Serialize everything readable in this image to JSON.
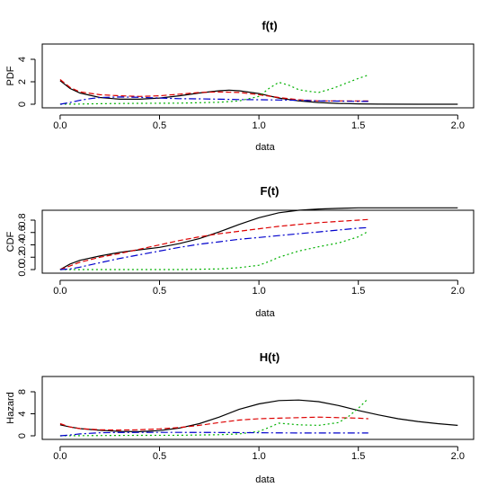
{
  "chart_data": [
    {
      "type": "line",
      "title": "f(t)",
      "xlabel": "data",
      "ylabel": "PDF",
      "xlim": [
        0,
        2
      ],
      "ylim": [
        0,
        5
      ],
      "xticks": [
        0.0,
        0.5,
        1.0,
        1.5,
        2.0
      ],
      "xtick_labels": [
        "0.0",
        "0.5",
        "1.0",
        "1.5",
        "2.0"
      ],
      "yticks": [
        0,
        2,
        4
      ],
      "ytick_labels": [
        "0",
        "2",
        "4"
      ],
      "series": [
        {
          "color": "#000000",
          "dash": "solid",
          "x": [
            0.0,
            0.05,
            0.1,
            0.2,
            0.3,
            0.4,
            0.5,
            0.6,
            0.7,
            0.8,
            0.85,
            0.9,
            1.0,
            1.1,
            1.2,
            1.3,
            1.4,
            1.5,
            1.6,
            1.8,
            2.0
          ],
          "y": [
            2.1,
            1.4,
            1.0,
            0.6,
            0.45,
            0.45,
            0.55,
            0.75,
            1.0,
            1.2,
            1.25,
            1.2,
            0.95,
            0.55,
            0.3,
            0.15,
            0.07,
            0.03,
            0.01,
            0.0,
            0.0
          ]
        },
        {
          "color": "#dd0000",
          "dash": "6,3",
          "x": [
            0.0,
            0.05,
            0.1,
            0.2,
            0.3,
            0.4,
            0.5,
            0.6,
            0.7,
            0.8,
            0.9,
            1.0,
            1.1,
            1.2,
            1.3,
            1.4,
            1.5,
            1.55
          ],
          "y": [
            2.2,
            1.5,
            1.1,
            0.85,
            0.75,
            0.7,
            0.75,
            0.9,
            1.05,
            1.1,
            1.05,
            0.85,
            0.6,
            0.4,
            0.3,
            0.3,
            0.3,
            0.3
          ]
        },
        {
          "color": "#00b000",
          "dash": "2,3",
          "x": [
            0.0,
            0.1,
            0.2,
            0.4,
            0.6,
            0.8,
            0.9,
            1.0,
            1.05,
            1.1,
            1.15,
            1.2,
            1.25,
            1.3,
            1.35,
            1.4,
            1.45,
            1.5,
            1.55
          ],
          "y": [
            0.0,
            0.02,
            0.05,
            0.08,
            0.1,
            0.18,
            0.3,
            0.7,
            1.4,
            1.95,
            1.7,
            1.3,
            1.15,
            1.05,
            1.3,
            1.6,
            1.95,
            2.3,
            2.6
          ]
        },
        {
          "color": "#0000cc",
          "dash": "8,3,2,3",
          "x": [
            0.0,
            0.05,
            0.1,
            0.15,
            0.2,
            0.3,
            0.4,
            0.5,
            0.6,
            0.7,
            0.8,
            0.9,
            1.0,
            1.1,
            1.2,
            1.3,
            1.4,
            1.5,
            1.55
          ],
          "y": [
            0.0,
            0.15,
            0.35,
            0.5,
            0.6,
            0.65,
            0.62,
            0.55,
            0.5,
            0.48,
            0.45,
            0.42,
            0.4,
            0.38,
            0.35,
            0.3,
            0.28,
            0.25,
            0.25
          ]
        }
      ]
    },
    {
      "type": "line",
      "title": "F(t)",
      "xlabel": "data",
      "ylabel": "CDF",
      "xlim": [
        0,
        2
      ],
      "ylim": [
        0,
        1
      ],
      "xticks": [
        0.0,
        0.5,
        1.0,
        1.5,
        2.0
      ],
      "xtick_labels": [
        "0.0",
        "0.5",
        "1.0",
        "1.5",
        "2.0"
      ],
      "yticks": [
        0.0,
        0.2,
        0.4,
        0.6,
        0.8
      ],
      "ytick_labels": [
        "0.0",
        "0.2",
        "0.4",
        "0.6",
        "0.8"
      ],
      "series": [
        {
          "color": "#000000",
          "dash": "solid",
          "x": [
            0.0,
            0.05,
            0.1,
            0.2,
            0.3,
            0.4,
            0.5,
            0.6,
            0.7,
            0.8,
            0.9,
            1.0,
            1.1,
            1.2,
            1.3,
            1.4,
            1.5,
            1.6,
            1.8,
            2.0
          ],
          "y": [
            0.0,
            0.09,
            0.15,
            0.22,
            0.28,
            0.32,
            0.36,
            0.42,
            0.5,
            0.61,
            0.73,
            0.84,
            0.92,
            0.96,
            0.98,
            0.99,
            1.0,
            1.0,
            1.0,
            1.0
          ]
        },
        {
          "color": "#dd0000",
          "dash": "6,3",
          "x": [
            0.0,
            0.05,
            0.1,
            0.2,
            0.3,
            0.4,
            0.5,
            0.6,
            0.7,
            0.8,
            0.9,
            1.0,
            1.1,
            1.2,
            1.3,
            1.4,
            1.5,
            1.55
          ],
          "y": [
            0.0,
            0.06,
            0.12,
            0.2,
            0.26,
            0.33,
            0.4,
            0.47,
            0.53,
            0.58,
            0.62,
            0.66,
            0.7,
            0.73,
            0.76,
            0.78,
            0.8,
            0.81
          ]
        },
        {
          "color": "#00b000",
          "dash": "2,3",
          "x": [
            0.0,
            0.2,
            0.4,
            0.6,
            0.8,
            0.9,
            1.0,
            1.05,
            1.1,
            1.2,
            1.3,
            1.4,
            1.5,
            1.55
          ],
          "y": [
            0.0,
            0.0,
            0.0,
            0.0,
            0.01,
            0.03,
            0.07,
            0.13,
            0.2,
            0.3,
            0.37,
            0.43,
            0.53,
            0.62
          ]
        },
        {
          "color": "#0000cc",
          "dash": "8,3,2,3",
          "x": [
            0.0,
            0.05,
            0.1,
            0.2,
            0.3,
            0.4,
            0.5,
            0.6,
            0.7,
            0.8,
            0.9,
            1.0,
            1.1,
            1.2,
            1.3,
            1.4,
            1.5,
            1.55
          ],
          "y": [
            0.0,
            0.01,
            0.04,
            0.11,
            0.18,
            0.24,
            0.3,
            0.36,
            0.41,
            0.45,
            0.49,
            0.52,
            0.55,
            0.58,
            0.61,
            0.64,
            0.67,
            0.68
          ]
        }
      ]
    },
    {
      "type": "line",
      "title": "H(t)",
      "xlabel": "data",
      "ylabel": "Hazard",
      "xlim": [
        0,
        2
      ],
      "ylim": [
        0,
        10
      ],
      "xticks": [
        0.0,
        0.5,
        1.0,
        1.5,
        2.0
      ],
      "xtick_labels": [
        "0.0",
        "0.5",
        "1.0",
        "1.5",
        "2.0"
      ],
      "yticks": [
        0,
        4,
        8
      ],
      "ytick_labels": [
        "0",
        "4",
        "8"
      ],
      "series": [
        {
          "color": "#000000",
          "dash": "solid",
          "x": [
            0.0,
            0.05,
            0.1,
            0.2,
            0.3,
            0.4,
            0.5,
            0.6,
            0.7,
            0.8,
            0.9,
            1.0,
            1.1,
            1.2,
            1.3,
            1.4,
            1.5,
            1.6,
            1.7,
            1.8,
            1.9,
            2.0
          ],
          "y": [
            2.0,
            1.6,
            1.3,
            1.0,
            0.8,
            0.75,
            0.95,
            1.4,
            2.2,
            3.4,
            4.8,
            5.8,
            6.4,
            6.5,
            6.2,
            5.5,
            4.6,
            3.8,
            3.1,
            2.6,
            2.2,
            1.9
          ]
        },
        {
          "color": "#dd0000",
          "dash": "6,3",
          "x": [
            0.0,
            0.05,
            0.1,
            0.2,
            0.3,
            0.4,
            0.5,
            0.6,
            0.7,
            0.8,
            0.9,
            1.0,
            1.1,
            1.2,
            1.3,
            1.4,
            1.5,
            1.55
          ],
          "y": [
            2.2,
            1.6,
            1.3,
            1.1,
            1.05,
            1.1,
            1.25,
            1.5,
            1.9,
            2.4,
            2.85,
            3.1,
            3.2,
            3.3,
            3.4,
            3.3,
            3.2,
            3.1
          ]
        },
        {
          "color": "#00b000",
          "dash": "2,3",
          "x": [
            0.0,
            0.2,
            0.4,
            0.6,
            0.8,
            0.9,
            1.0,
            1.05,
            1.1,
            1.2,
            1.3,
            1.4,
            1.45,
            1.5,
            1.55
          ],
          "y": [
            0.0,
            0.05,
            0.08,
            0.1,
            0.2,
            0.35,
            0.8,
            1.5,
            2.3,
            2.0,
            1.9,
            2.4,
            3.5,
            5.0,
            6.8
          ]
        },
        {
          "color": "#0000cc",
          "dash": "8,3,2,3",
          "x": [
            0.0,
            0.05,
            0.1,
            0.2,
            0.3,
            0.4,
            0.5,
            0.6,
            0.8,
            1.0,
            1.2,
            1.4,
            1.55
          ],
          "y": [
            0.0,
            0.15,
            0.35,
            0.55,
            0.6,
            0.62,
            0.62,
            0.62,
            0.6,
            0.55,
            0.5,
            0.5,
            0.5
          ]
        }
      ]
    }
  ]
}
